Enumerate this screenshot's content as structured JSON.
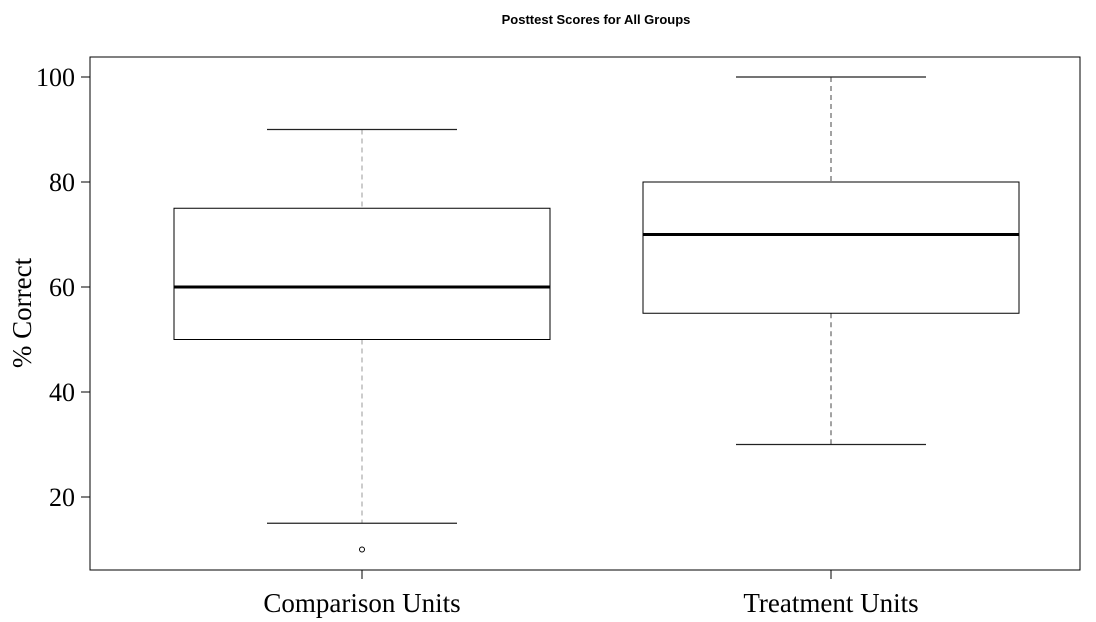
{
  "chart_data": {
    "type": "boxplot",
    "title": "Posttest Scores for All Groups",
    "xlabel": "",
    "ylabel": "% Correct",
    "yticks": [
      20,
      40,
      60,
      80,
      100
    ],
    "ylim": [
      5,
      104
    ],
    "grid": false,
    "categories": [
      "Comparison Units",
      "Treatment Units"
    ],
    "boxes": [
      {
        "category": "Comparison Units",
        "whisker_low": 15,
        "q1": 50,
        "median": 60,
        "q3": 75,
        "whisker_high": 90,
        "outliers": [
          10
        ]
      },
      {
        "category": "Treatment Units",
        "whisker_low": 30,
        "q1": 55,
        "median": 70,
        "q3": 80,
        "whisker_high": 100,
        "outliers": []
      }
    ]
  }
}
